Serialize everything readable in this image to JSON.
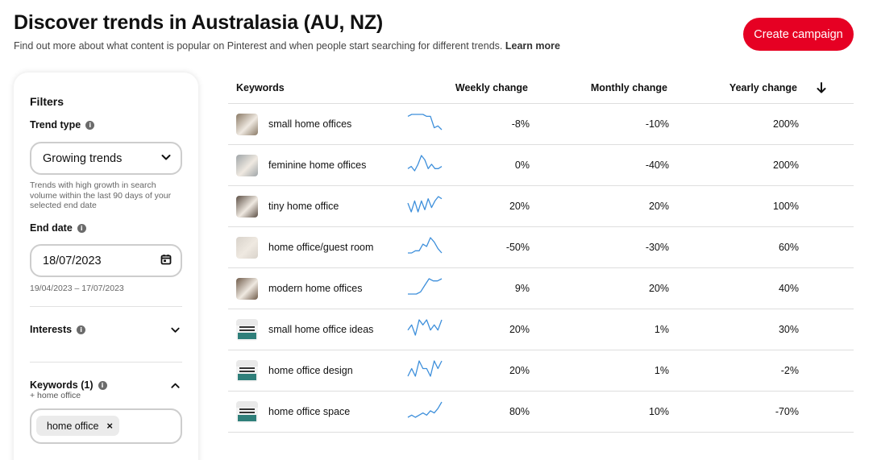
{
  "header": {
    "title": "Discover trends in Australasia (AU, NZ)",
    "subtitle": "Find out more about what content is popular on Pinterest and when people start searching for different trends.",
    "learn_more": "Learn more",
    "cta_label": "Create campaign"
  },
  "colors": {
    "accent": "#e60023",
    "sparkline": "#3d8fdb"
  },
  "filters": {
    "title": "Filters",
    "trend_type": {
      "label": "Trend type",
      "value": "Growing trends",
      "hint_lines": [
        "Trends with high growth in search",
        "volume within the last 90 days of your",
        "selected end date"
      ]
    },
    "end_date": {
      "label": "End date",
      "value": "18/07/2023",
      "range": "19/04/2023 – 17/07/2023"
    },
    "interests": {
      "label": "Interests"
    },
    "keywords": {
      "label": "Keywords (1)",
      "sub": "+ home office",
      "chip": "home office"
    }
  },
  "table": {
    "headers": {
      "keywords": "Keywords",
      "weekly": "Weekly change",
      "monthly": "Monthly change",
      "yearly": "Yearly change"
    },
    "sorted_by": "yearly",
    "sort_direction": "descending",
    "rows": [
      {
        "keyword": "small home offices",
        "weekly": "-8%",
        "monthly": "-10%",
        "yearly": "200%",
        "thumb": "room-photo",
        "trend": [
          8,
          9,
          9,
          9,
          9,
          8,
          8,
          2,
          3,
          1
        ],
        "thumb_color": "#8a7a66"
      },
      {
        "keyword": "feminine home offices",
        "weekly": "0%",
        "monthly": "-40%",
        "yearly": "200%",
        "thumb": "room-photo",
        "trend": [
          3,
          4,
          2,
          5,
          9,
          7,
          3,
          5,
          3,
          3,
          4
        ],
        "thumb_color": "#9fa5a8"
      },
      {
        "keyword": "tiny home office",
        "weekly": "20%",
        "monthly": "20%",
        "yearly": "100%",
        "thumb": "room-photo",
        "trend": [
          5,
          1,
          6,
          1,
          6,
          2,
          7,
          3,
          6,
          8,
          7
        ],
        "thumb_color": "#5c4f45"
      },
      {
        "keyword": "home office/guest room",
        "weekly": "-50%",
        "monthly": "-30%",
        "yearly": "60%",
        "thumb": "room-photo",
        "trend": [
          2,
          2,
          3,
          3,
          6,
          5,
          9,
          7,
          4,
          2
        ],
        "thumb_color": "#d8d2ca"
      },
      {
        "keyword": "modern home offices",
        "weekly": "9%",
        "monthly": "20%",
        "yearly": "40%",
        "thumb": "room-photo",
        "trend": [
          1,
          1,
          1,
          2,
          5,
          8,
          7,
          7,
          8
        ],
        "thumb_color": "#6e5a49"
      },
      {
        "keyword": "small home office ideas",
        "weekly": "20%",
        "monthly": "1%",
        "yearly": "30%",
        "thumb": "pin-graphic",
        "trend": [
          5,
          6,
          4,
          7,
          6,
          7,
          5,
          6,
          5,
          7
        ],
        "thumb_color": "#2f7f7a"
      },
      {
        "keyword": "home office design",
        "weekly": "20%",
        "monthly": "1%",
        "yearly": "-2%",
        "thumb": "pin-graphic",
        "trend": [
          5,
          6,
          5,
          7,
          6,
          6,
          5,
          7,
          6,
          7
        ],
        "thumb_color": "#2f7f7a"
      },
      {
        "keyword": "home office space",
        "weekly": "80%",
        "monthly": "10%",
        "yearly": "-70%",
        "thumb": "pin-graphic",
        "trend": [
          2,
          3,
          2,
          3,
          4,
          3,
          5,
          4,
          6,
          9
        ],
        "thumb_color": "#2f7f7a"
      }
    ]
  }
}
